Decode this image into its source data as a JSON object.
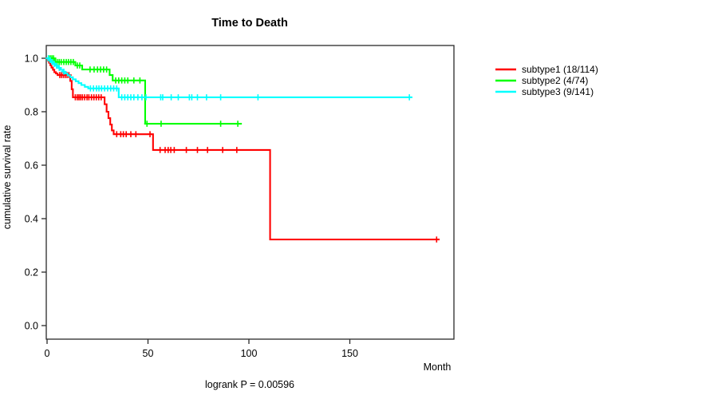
{
  "chart_data": {
    "type": "line",
    "variant": "kaplan-meier-step",
    "title": "Time to Death",
    "xlabel": "Month",
    "ylabel": "cumulative survival rate",
    "annotation": "logrank P = 0.00596",
    "xlim": [
      0,
      201
    ],
    "ylim": [
      0,
      1
    ],
    "x_ticks": [
      0,
      50,
      100,
      150
    ],
    "x_tick_labels": [
      "0",
      "50",
      "100",
      "150"
    ],
    "y_ticks": [
      0.0,
      0.2,
      0.4,
      0.6,
      0.8,
      1.0
    ],
    "y_tick_labels": [
      "0.0",
      "0.2",
      "0.4",
      "0.6",
      "0.8",
      "1.0"
    ],
    "grid": false,
    "legend_position": "right-outside",
    "series": [
      {
        "name": "subtype1 (18/114)",
        "color": "#ff0000",
        "end_month": 194.5,
        "steps": [
          [
            0,
            1.0
          ],
          [
            0.5,
            0.991
          ],
          [
            1.0,
            0.983
          ],
          [
            1.6,
            0.974
          ],
          [
            2.2,
            0.965
          ],
          [
            2.9,
            0.957
          ],
          [
            3.6,
            0.948
          ],
          [
            4.4,
            0.943
          ],
          [
            5.2,
            0.937
          ],
          [
            11.5,
            0.915
          ],
          [
            12.2,
            0.884
          ],
          [
            12.8,
            0.854
          ],
          [
            28.5,
            0.828
          ],
          [
            29.5,
            0.8
          ],
          [
            30.4,
            0.776
          ],
          [
            31.3,
            0.752
          ],
          [
            32.1,
            0.73
          ],
          [
            33.0,
            0.716
          ],
          [
            52.5,
            0.657
          ],
          [
            110.5,
            0.322
          ]
        ],
        "censors": [
          [
            6.3,
            0.937
          ],
          [
            7.2,
            0.937
          ],
          [
            8.1,
            0.937
          ],
          [
            9.0,
            0.937
          ],
          [
            9.9,
            0.937
          ],
          [
            10.8,
            0.937
          ],
          [
            14.0,
            0.854
          ],
          [
            15.0,
            0.854
          ],
          [
            15.8,
            0.854
          ],
          [
            16.6,
            0.854
          ],
          [
            17.5,
            0.854
          ],
          [
            18.6,
            0.854
          ],
          [
            19.8,
            0.854
          ],
          [
            20.7,
            0.854
          ],
          [
            22.0,
            0.854
          ],
          [
            23.2,
            0.854
          ],
          [
            24.4,
            0.854
          ],
          [
            25.6,
            0.854
          ],
          [
            26.8,
            0.854
          ],
          [
            34.5,
            0.716
          ],
          [
            36.5,
            0.716
          ],
          [
            37.8,
            0.716
          ],
          [
            39.2,
            0.716
          ],
          [
            41.5,
            0.716
          ],
          [
            44.0,
            0.716
          ],
          [
            51.0,
            0.716
          ],
          [
            56.0,
            0.657
          ],
          [
            58.5,
            0.657
          ],
          [
            60.0,
            0.657
          ],
          [
            61.3,
            0.657
          ],
          [
            63.0,
            0.657
          ],
          [
            69.0,
            0.657
          ],
          [
            74.5,
            0.657
          ],
          [
            79.5,
            0.657
          ],
          [
            87.0,
            0.657
          ],
          [
            94.0,
            0.657
          ],
          [
            193.0,
            0.322
          ]
        ]
      },
      {
        "name": "subtype2 (4/74)",
        "color": "#00ff00",
        "end_month": 96.5,
        "steps": [
          [
            0,
            1.0
          ],
          [
            4.0,
            0.986
          ],
          [
            14.0,
            0.973
          ],
          [
            17.4,
            0.958
          ],
          [
            31.0,
            0.937
          ],
          [
            32.5,
            0.917
          ],
          [
            48.6,
            0.755
          ]
        ],
        "censors": [
          [
            0.8,
            1.0
          ],
          [
            1.6,
            1.0
          ],
          [
            2.4,
            1.0
          ],
          [
            3.2,
            1.0
          ],
          [
            5.0,
            0.986
          ],
          [
            6.0,
            0.986
          ],
          [
            7.0,
            0.986
          ],
          [
            8.3,
            0.986
          ],
          [
            9.5,
            0.986
          ],
          [
            10.6,
            0.986
          ],
          [
            11.8,
            0.986
          ],
          [
            13.0,
            0.986
          ],
          [
            15.0,
            0.973
          ],
          [
            16.2,
            0.973
          ],
          [
            21.3,
            0.958
          ],
          [
            23.3,
            0.958
          ],
          [
            25.0,
            0.958
          ],
          [
            26.5,
            0.958
          ],
          [
            28.0,
            0.958
          ],
          [
            29.5,
            0.958
          ],
          [
            34.0,
            0.917
          ],
          [
            35.5,
            0.917
          ],
          [
            37.0,
            0.917
          ],
          [
            38.5,
            0.917
          ],
          [
            40.0,
            0.917
          ],
          [
            43.0,
            0.917
          ],
          [
            46.0,
            0.917
          ],
          [
            49.5,
            0.755
          ],
          [
            56.5,
            0.755
          ],
          [
            86.0,
            0.755
          ],
          [
            94.5,
            0.755
          ]
        ]
      },
      {
        "name": "subtype3 (9/141)",
        "color": "#00ffff",
        "end_month": 181.0,
        "steps": [
          [
            0,
            1.0
          ],
          [
            1.0,
            0.993
          ],
          [
            2.0,
            0.986
          ],
          [
            3.0,
            0.979
          ],
          [
            4.2,
            0.972
          ],
          [
            5.4,
            0.964
          ],
          [
            6.6,
            0.957
          ],
          [
            7.8,
            0.95
          ],
          [
            9.0,
            0.943
          ],
          [
            10.2,
            0.936
          ],
          [
            11.4,
            0.929
          ],
          [
            12.8,
            0.921
          ],
          [
            14.2,
            0.914
          ],
          [
            15.6,
            0.907
          ],
          [
            17.0,
            0.9
          ],
          [
            18.7,
            0.893
          ],
          [
            20.4,
            0.887
          ],
          [
            35.5,
            0.854
          ]
        ],
        "censors": [
          [
            0.6,
            1.0
          ],
          [
            1.5,
            0.993
          ],
          [
            2.5,
            0.986
          ],
          [
            3.5,
            0.979
          ],
          [
            4.7,
            0.972
          ],
          [
            6.0,
            0.964
          ],
          [
            8.3,
            0.95
          ],
          [
            21.5,
            0.887
          ],
          [
            23.0,
            0.887
          ],
          [
            24.5,
            0.887
          ],
          [
            25.7,
            0.887
          ],
          [
            27.0,
            0.887
          ],
          [
            28.5,
            0.887
          ],
          [
            30.0,
            0.887
          ],
          [
            31.5,
            0.887
          ],
          [
            33.0,
            0.887
          ],
          [
            34.5,
            0.887
          ],
          [
            37.0,
            0.854
          ],
          [
            38.5,
            0.854
          ],
          [
            40.0,
            0.854
          ],
          [
            41.5,
            0.854
          ],
          [
            43.0,
            0.854
          ],
          [
            45.0,
            0.854
          ],
          [
            47.0,
            0.854
          ],
          [
            49.0,
            0.854
          ],
          [
            56.3,
            0.854
          ],
          [
            57.3,
            0.854
          ],
          [
            61.5,
            0.854
          ],
          [
            65.0,
            0.854
          ],
          [
            70.5,
            0.854
          ],
          [
            71.7,
            0.854
          ],
          [
            74.5,
            0.854
          ],
          [
            79.0,
            0.854
          ],
          [
            86.0,
            0.854
          ],
          [
            104.5,
            0.854
          ],
          [
            179.5,
            0.854
          ]
        ]
      }
    ]
  }
}
